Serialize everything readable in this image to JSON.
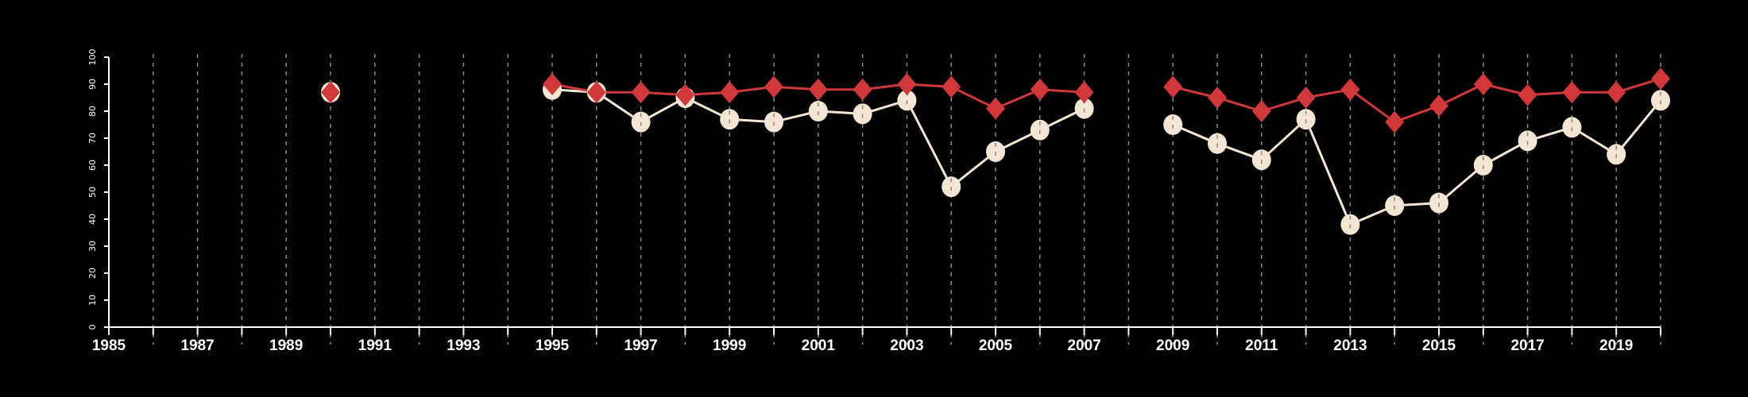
{
  "chart_data": {
    "type": "line",
    "title": "",
    "xlabel": "",
    "ylabel": "",
    "xlim": [
      1985,
      2020
    ],
    "ylim": [
      0,
      100
    ],
    "grid": "vertical dashed lines every year",
    "x_tick_labels": [
      "1985",
      "1987",
      "1989",
      "1991",
      "1993",
      "1995",
      "1997",
      "1999",
      "2001",
      "2003",
      "2005",
      "2007",
      "2009",
      "2011",
      "2013",
      "2015",
      "2017",
      "2019"
    ],
    "y_tick_labels": [
      "0",
      "10",
      "20",
      "30",
      "40",
      "50",
      "60",
      "70",
      "80",
      "90",
      "100"
    ],
    "x": [
      1990,
      1995,
      1996,
      1997,
      1998,
      1999,
      2000,
      2001,
      2002,
      2003,
      2004,
      2005,
      2006,
      2007,
      2008,
      2009,
      2010,
      2011,
      2012,
      2013,
      2014,
      2015,
      2016,
      2017,
      2018,
      2019,
      2020
    ],
    "series": [
      {
        "name": "white-circles",
        "color": "#f5e6d3",
        "marker": "circle",
        "values": [
          87,
          88,
          87,
          76,
          85,
          77,
          76,
          80,
          79,
          84,
          52,
          65,
          73,
          81,
          null,
          75,
          68,
          62,
          77,
          38,
          45,
          46,
          60,
          69,
          74,
          64,
          84
        ]
      },
      {
        "name": "red-diamonds",
        "color": "#d0383a",
        "marker": "diamond",
        "values": [
          87,
          90,
          87,
          87,
          86,
          87,
          89,
          88,
          88,
          90,
          89,
          81,
          88,
          87,
          null,
          89,
          85,
          80,
          85,
          88,
          76,
          82,
          90,
          86,
          87,
          87,
          92
        ]
      }
    ]
  }
}
